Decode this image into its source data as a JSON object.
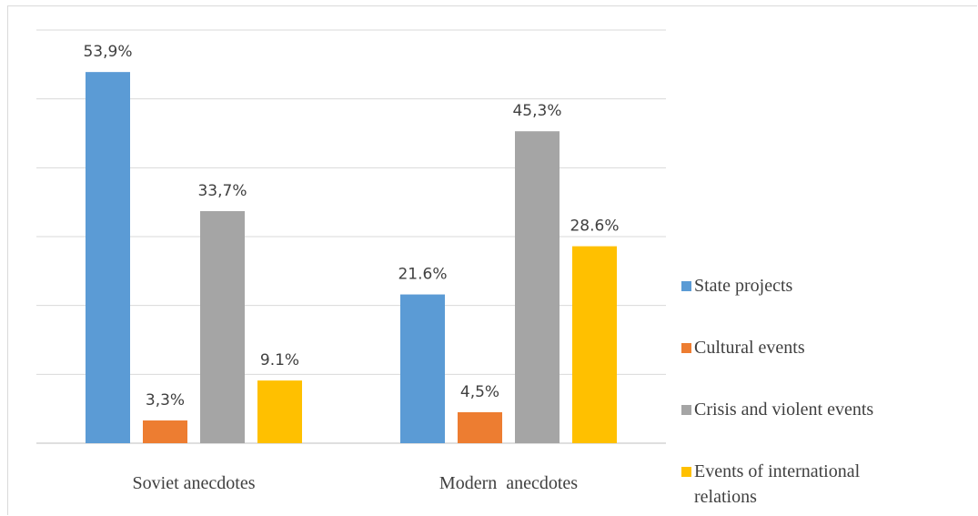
{
  "chart_data": {
    "type": "bar",
    "categories": [
      "Soviet anecdotes",
      "Modern  anecdotes"
    ],
    "series": [
      {
        "name": "State projects",
        "color": "#5b9bd5",
        "values": [
          53.9,
          21.6
        ],
        "labels": [
          "53,9%",
          "21.6%"
        ]
      },
      {
        "name": "Cultural events",
        "color": "#ed7d31",
        "values": [
          3.3,
          4.5
        ],
        "labels": [
          "3,3%",
          "4,5%"
        ]
      },
      {
        "name": "Crisis and violent events",
        "color": "#a5a5a5",
        "values": [
          33.7,
          45.3
        ],
        "labels": [
          "33,7%",
          "45,3%"
        ]
      },
      {
        "name": "Events of international relations",
        "legend_lines": [
          "Events of international",
          "relations"
        ],
        "color": "#ffc000",
        "values": [
          9.1,
          28.6
        ],
        "labels": [
          "9.1%",
          "28.6%"
        ]
      }
    ],
    "ylim": [
      0,
      60
    ],
    "grid": true,
    "legend_position": "right"
  }
}
